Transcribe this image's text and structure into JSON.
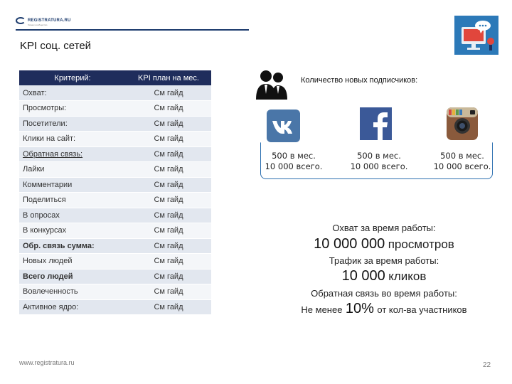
{
  "logo": {
    "text": "REGISTRATURA.RU",
    "subtext": "бизнес-сообщество"
  },
  "title": "KPI соц. сетей",
  "table": {
    "headers": [
      "Критерий:",
      "KPI план на мес."
    ],
    "rows": [
      {
        "label": "Охват:",
        "value": "См гайд"
      },
      {
        "label": "Просмотры:",
        "value": "См гайд"
      },
      {
        "label": "Посетители:",
        "value": "См гайд"
      },
      {
        "label": "Клики на сайт:",
        "value": "См гайд"
      },
      {
        "label": "Обратная связь:",
        "value": "См гайд"
      },
      {
        "label": "Лайки",
        "value": "См гайд"
      },
      {
        "label": "Комментарии",
        "value": "См гайд"
      },
      {
        "label": "Поделиться",
        "value": "См гайд"
      },
      {
        "label": "В опросах",
        "value": "См гайд"
      },
      {
        "label": "В конкурсах",
        "value": "См гайд"
      },
      {
        "label": "Обр. связь сумма:",
        "value": "См гайд"
      },
      {
        "label": "Новых людей",
        "value": "См гайд"
      },
      {
        "label": "Всего людей",
        "value": "См гайд"
      },
      {
        "label": "Вовлеченность",
        "value": "См гайд"
      },
      {
        "label": "Активное ядро:",
        "value": "См гайд"
      }
    ]
  },
  "subscribers": {
    "title": "Количество новых подписчиков:",
    "networks": [
      {
        "icon": "vk-icon",
        "line1": "500 в мес.",
        "line2": "10 000 всего."
      },
      {
        "icon": "facebook-icon",
        "line1": "500 в мес.",
        "line2": "10 000 всего."
      },
      {
        "icon": "instagram-icon",
        "line1": "500 в мес.",
        "line2": "10 000 всего."
      }
    ]
  },
  "stats": {
    "reach_label": "Охват за время работы:",
    "reach_value": "10 000 000",
    "reach_unit": "просмотров",
    "traffic_label": "Трафик за время работы:",
    "traffic_value": "10 000",
    "traffic_unit": "кликов",
    "feedback_label": "Обратная связь во время работы:",
    "feedback_prefix": "Не менее",
    "feedback_value": "10%",
    "feedback_suffix": "от кол-ва участников"
  },
  "footer": {
    "url": "www.registratura.ru",
    "page": "22"
  },
  "colors": {
    "primary": "#1f2d5c",
    "accent": "#2c6fb0",
    "vk": "#4a76a8",
    "facebook": "#3b5998"
  }
}
